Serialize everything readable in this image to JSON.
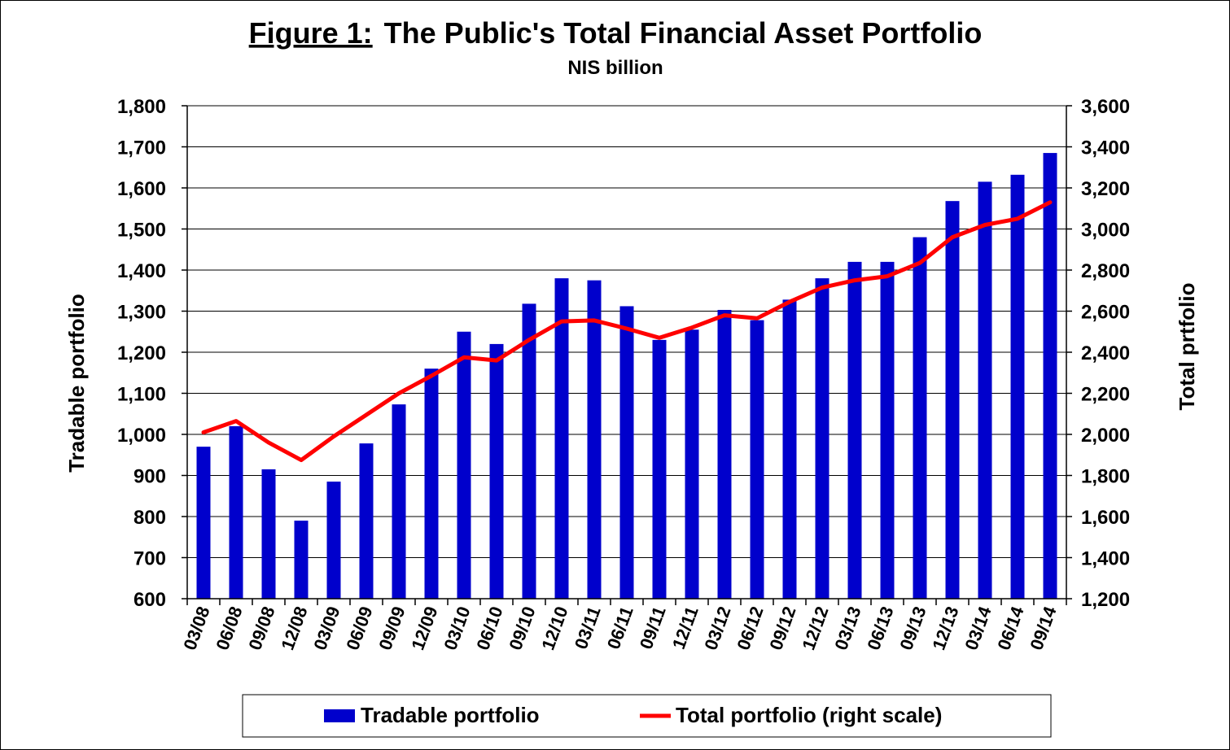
{
  "chart_data": {
    "type": "bar",
    "title_prefix": "Figure 1:",
    "title_rest": "The Public's Total Financial Asset Portfolio",
    "subtitle": "NIS billion",
    "ylabel": "Tradable portfolio",
    "ylabel_right": "Total prtfolio",
    "ylim": [
      600,
      1800
    ],
    "ylim_right": [
      1200,
      3600
    ],
    "yticks_left": [
      "600",
      "700",
      "800",
      "900",
      "1,000",
      "1,100",
      "1,200",
      "1,300",
      "1,400",
      "1,500",
      "1,600",
      "1,700",
      "1,800"
    ],
    "yticks_right": [
      "1,200",
      "1,400",
      "1,600",
      "1,800",
      "2,000",
      "2,200",
      "2,400",
      "2,600",
      "2,800",
      "3,000",
      "3,200",
      "3,400",
      "3,600"
    ],
    "categories": [
      "03/08",
      "06/08",
      "09/08",
      "12/08",
      "03/09",
      "06/09",
      "09/09",
      "12/09",
      "03/10",
      "06/10",
      "09/10",
      "12/10",
      "03/11",
      "06/11",
      "09/11",
      "12/11",
      "03/12",
      "06/12",
      "09/12",
      "12/12",
      "03/13",
      "06/13",
      "09/13",
      "12/13",
      "03/14",
      "06/14",
      "09/14"
    ],
    "series": [
      {
        "name": "Tradable portfolio",
        "kind": "bar",
        "axis": "left",
        "color": "#0000CC",
        "values": [
          970,
          1020,
          915,
          790,
          885,
          978,
          1073,
          1160,
          1250,
          1220,
          1318,
          1380,
          1375,
          1312,
          1230,
          1255,
          1303,
          1278,
          1328,
          1380,
          1420,
          1420,
          1480,
          1568,
          1615,
          1632,
          1685
        ]
      },
      {
        "name": "Total portfolio (right scale)",
        "kind": "line",
        "axis": "right",
        "color": "#FF0000",
        "values": [
          2010,
          2065,
          1960,
          1875,
          1990,
          2095,
          2200,
          2285,
          2375,
          2360,
          2460,
          2550,
          2555,
          2515,
          2470,
          2520,
          2580,
          2565,
          2645,
          2715,
          2750,
          2770,
          2835,
          2960,
          3020,
          3050,
          3130
        ]
      }
    ],
    "grid": true,
    "legend_position": "bottom"
  }
}
